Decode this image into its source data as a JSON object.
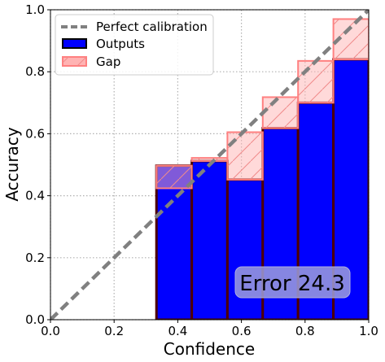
{
  "chart_data": {
    "type": "bar",
    "xlabel": "Confidence",
    "ylabel": "Accuracy",
    "xlim": [
      0,
      1
    ],
    "ylim": [
      0,
      1
    ],
    "xticks": [
      "0.0",
      "0.2",
      "0.4",
      "0.6",
      "0.8",
      "1.0"
    ],
    "yticks": [
      "0.0",
      "0.2",
      "0.4",
      "0.6",
      "0.8",
      "1.0"
    ],
    "grid": true,
    "bins": [
      {
        "start": 0.0,
        "end": 0.111,
        "output": 0.0,
        "expected": 0.0
      },
      {
        "start": 0.111,
        "end": 0.222,
        "output": 0.0,
        "expected": 0.0
      },
      {
        "start": 0.222,
        "end": 0.333,
        "output": 0.0,
        "expected": 0.0
      },
      {
        "start": 0.333,
        "end": 0.444,
        "output": 0.497,
        "expected": 0.424
      },
      {
        "start": 0.444,
        "end": 0.556,
        "output": 0.512,
        "expected": 0.522
      },
      {
        "start": 0.556,
        "end": 0.667,
        "output": 0.452,
        "expected": 0.605
      },
      {
        "start": 0.667,
        "end": 0.778,
        "output": 0.618,
        "expected": 0.718
      },
      {
        "start": 0.778,
        "end": 0.889,
        "output": 0.7,
        "expected": 0.835
      },
      {
        "start": 0.889,
        "end": 1.0,
        "output": 0.84,
        "expected": 0.97
      }
    ],
    "series": [
      {
        "name": "Perfect calibration",
        "type": "line",
        "x": [
          0,
          1
        ],
        "y": [
          0,
          1
        ],
        "color": "#808080"
      },
      {
        "name": "Outputs",
        "type": "bar",
        "color": "#0000ff",
        "edge_color": "#4d0000"
      },
      {
        "name": "Gap",
        "type": "bar",
        "color": "#ffb3b3",
        "edge_color": "#ff8080",
        "hatch": "/"
      }
    ],
    "legend_position": "top-left",
    "annotation": "Error 24.3"
  }
}
